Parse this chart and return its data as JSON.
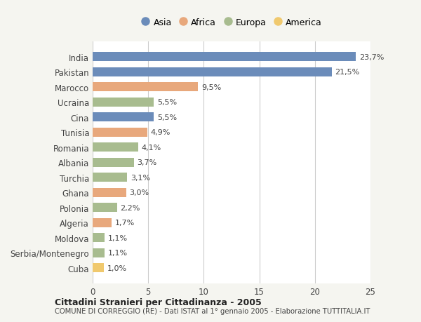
{
  "categories": [
    "India",
    "Pakistan",
    "Marocco",
    "Ucraina",
    "Cina",
    "Tunisia",
    "Romania",
    "Albania",
    "Turchia",
    "Ghana",
    "Polonia",
    "Algeria",
    "Moldova",
    "Serbia/Montenegro",
    "Cuba"
  ],
  "values": [
    23.7,
    21.5,
    9.5,
    5.5,
    5.5,
    4.9,
    4.1,
    3.7,
    3.1,
    3.0,
    2.2,
    1.7,
    1.1,
    1.1,
    1.0
  ],
  "labels": [
    "23,7%",
    "21,5%",
    "9,5%",
    "5,5%",
    "5,5%",
    "4,9%",
    "4,1%",
    "3,7%",
    "3,1%",
    "3,0%",
    "2,2%",
    "1,7%",
    "1,1%",
    "1,1%",
    "1,0%"
  ],
  "continents": [
    "Asia",
    "Asia",
    "Africa",
    "Europa",
    "Asia",
    "Africa",
    "Europa",
    "Europa",
    "Europa",
    "Africa",
    "Europa",
    "Africa",
    "Europa",
    "Europa",
    "America"
  ],
  "colors": {
    "Asia": "#6b8cba",
    "Africa": "#e8a87c",
    "Europa": "#a8bc8f",
    "America": "#f0c96e"
  },
  "legend_order": [
    "Asia",
    "Africa",
    "Europa",
    "America"
  ],
  "title1": "Cittadini Stranieri per Cittadinanza - 2005",
  "title2": "COMUNE DI CORREGGIO (RE) - Dati ISTAT al 1° gennaio 2005 - Elaborazione TUTTITALIA.IT",
  "xlim": [
    0,
    25
  ],
  "xticks": [
    0,
    5,
    10,
    15,
    20,
    25
  ],
  "background_color": "#f5f5f0",
  "bar_background": "#ffffff",
  "grid_color": "#cccccc"
}
